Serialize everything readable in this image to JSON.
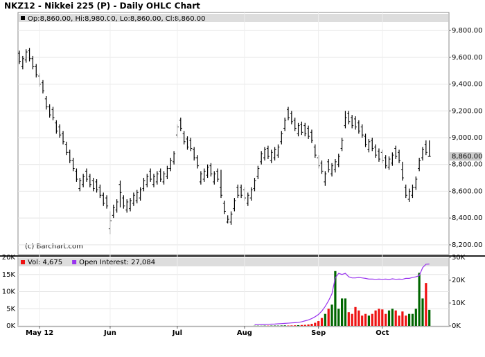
{
  "chart_data": [
    {
      "type": "ohlc",
      "title": "NKZ12 - Nikkei 225 (P) - Daily OHLC Chart",
      "legend": "Op:8,860.00, Hi:8,980.00, Lo:8,860.00, Cl:8,860.00",
      "credit": "(c) Barchart.com",
      "last": {
        "value": 8860,
        "label": "8,860.00"
      },
      "color": "#000000",
      "ylim": [
        8127,
        9935
      ],
      "yticks": [
        {
          "value": 8200,
          "label": "8,200.00"
        },
        {
          "value": 8400,
          "label": "8,400.00"
        },
        {
          "value": 8600,
          "label": "8,600.00"
        },
        {
          "value": 8800,
          "label": "8,800.00"
        },
        {
          "value": 9000,
          "label": "9,000.00"
        },
        {
          "value": 9200,
          "label": "9,200.00"
        },
        {
          "value": 9400,
          "label": "9,400.00"
        },
        {
          "value": 9600,
          "label": "9,600.00"
        },
        {
          "value": 9800,
          "label": "9,800.00"
        }
      ],
      "grid": true,
      "bars": [
        [
          9630,
          9650,
          9550,
          9570
        ],
        [
          9530,
          9610,
          9510,
          9590
        ],
        [
          9580,
          9660,
          9560,
          9640
        ],
        [
          9650,
          9670,
          9570,
          9590
        ],
        [
          9590,
          9610,
          9510,
          9530
        ],
        [
          9530,
          9550,
          9450,
          9470
        ],
        [
          9460,
          9480,
          9380,
          9400
        ],
        [
          9410,
          9430,
          9330,
          9350
        ],
        [
          9290,
          9310,
          9210,
          9230
        ],
        [
          9230,
          9250,
          9150,
          9170
        ],
        [
          9210,
          9230,
          9130,
          9150
        ],
        [
          9110,
          9130,
          9030,
          9050
        ],
        [
          9080,
          9100,
          9000,
          9020
        ],
        [
          9030,
          9050,
          8950,
          8970
        ],
        [
          8950,
          8970,
          8870,
          8890
        ],
        [
          8890,
          8910,
          8810,
          8830
        ],
        [
          8830,
          8850,
          8750,
          8770
        ],
        [
          8750,
          8770,
          8670,
          8690
        ],
        [
          8620,
          8700,
          8600,
          8680
        ],
        [
          8650,
          8730,
          8630,
          8710
        ],
        [
          8750,
          8770,
          8670,
          8690
        ],
        [
          8710,
          8730,
          8630,
          8650
        ],
        [
          8680,
          8700,
          8600,
          8620
        ],
        [
          8670,
          8690,
          8590,
          8610
        ],
        [
          8630,
          8650,
          8550,
          8570
        ],
        [
          8570,
          8590,
          8490,
          8510
        ],
        [
          8550,
          8570,
          8470,
          8490
        ],
        [
          8320,
          8450,
          8280,
          8380
        ],
        [
          8420,
          8500,
          8400,
          8480
        ],
        [
          8460,
          8540,
          8440,
          8520
        ],
        [
          8650,
          8680,
          8480,
          8590
        ],
        [
          8550,
          8570,
          8470,
          8490
        ],
        [
          8460,
          8540,
          8440,
          8520
        ],
        [
          8470,
          8550,
          8450,
          8530
        ],
        [
          8510,
          8590,
          8490,
          8570
        ],
        [
          8530,
          8610,
          8510,
          8590
        ],
        [
          8550,
          8630,
          8530,
          8610
        ],
        [
          8620,
          8700,
          8600,
          8680
        ],
        [
          8650,
          8730,
          8630,
          8710
        ],
        [
          8750,
          8770,
          8670,
          8690
        ],
        [
          8650,
          8730,
          8630,
          8710
        ],
        [
          8670,
          8750,
          8650,
          8730
        ],
        [
          8750,
          8770,
          8670,
          8690
        ],
        [
          8670,
          8750,
          8650,
          8730
        ],
        [
          8710,
          8790,
          8690,
          8770
        ],
        [
          8770,
          8850,
          8750,
          8830
        ],
        [
          8820,
          8900,
          8800,
          8880
        ],
        [
          9020,
          9100,
          9000,
          9080
        ],
        [
          9130,
          9150,
          9050,
          9070
        ],
        [
          9030,
          9050,
          8950,
          8970
        ],
        [
          8990,
          9010,
          8910,
          8930
        ],
        [
          8980,
          9000,
          8900,
          8920
        ],
        [
          8910,
          8930,
          8830,
          8850
        ],
        [
          8850,
          8870,
          8770,
          8790
        ],
        [
          8670,
          8750,
          8650,
          8730
        ],
        [
          8690,
          8770,
          8670,
          8750
        ],
        [
          8720,
          8800,
          8700,
          8780
        ],
        [
          8790,
          8810,
          8710,
          8730
        ],
        [
          8670,
          8750,
          8650,
          8730
        ],
        [
          8750,
          8770,
          8670,
          8690
        ],
        [
          8630,
          8760,
          8550,
          8570
        ],
        [
          8510,
          8530,
          8430,
          8450
        ],
        [
          8370,
          8420,
          8360,
          8390
        ],
        [
          8370,
          8450,
          8350,
          8430
        ],
        [
          8470,
          8550,
          8450,
          8530
        ],
        [
          8630,
          8650,
          8550,
          8570
        ],
        [
          8630,
          8650,
          8550,
          8570
        ],
        [
          8610,
          8630,
          8530,
          8550
        ],
        [
          8510,
          8590,
          8490,
          8570
        ],
        [
          8550,
          8630,
          8530,
          8610
        ],
        [
          8620,
          8700,
          8600,
          8680
        ],
        [
          8710,
          8790,
          8690,
          8770
        ],
        [
          8820,
          8900,
          8800,
          8880
        ],
        [
          8850,
          8930,
          8830,
          8910
        ],
        [
          8920,
          8940,
          8840,
          8860
        ],
        [
          8830,
          8910,
          8810,
          8890
        ],
        [
          8850,
          8930,
          8830,
          8910
        ],
        [
          8870,
          8950,
          8850,
          8930
        ],
        [
          8970,
          9050,
          8950,
          9030
        ],
        [
          9070,
          9150,
          9050,
          9130
        ],
        [
          9210,
          9230,
          9130,
          9150
        ],
        [
          9180,
          9200,
          9100,
          9120
        ],
        [
          9130,
          9150,
          9050,
          9070
        ],
        [
          9030,
          9110,
          9010,
          9090
        ],
        [
          9100,
          9120,
          9020,
          9040
        ],
        [
          9090,
          9110,
          9010,
          9030
        ],
        [
          9070,
          9090,
          8990,
          9010
        ],
        [
          9040,
          9060,
          8960,
          8980
        ],
        [
          8930,
          8950,
          8850,
          8870
        ],
        [
          8850,
          8870,
          8770,
          8790
        ],
        [
          8810,
          8830,
          8730,
          8750
        ],
        [
          8670,
          8750,
          8640,
          8730
        ],
        [
          8820,
          8840,
          8740,
          8760
        ],
        [
          8730,
          8810,
          8710,
          8790
        ],
        [
          8760,
          8840,
          8740,
          8820
        ],
        [
          8800,
          8880,
          8780,
          8860
        ],
        [
          8920,
          9000,
          8900,
          8980
        ],
        [
          9090,
          9200,
          9070,
          9150
        ],
        [
          9180,
          9200,
          9100,
          9120
        ],
        [
          9150,
          9170,
          9070,
          9090
        ],
        [
          9140,
          9160,
          9060,
          9080
        ],
        [
          9110,
          9130,
          9030,
          9050
        ],
        [
          9080,
          9100,
          9000,
          9020
        ],
        [
          9010,
          9030,
          8930,
          8950
        ],
        [
          8910,
          8990,
          8890,
          8970
        ],
        [
          8980,
          9000,
          8900,
          8920
        ],
        [
          8930,
          8950,
          8850,
          8870
        ],
        [
          8900,
          8920,
          8820,
          8840
        ],
        [
          8890,
          8910,
          8810,
          8830
        ],
        [
          8850,
          8870,
          8770,
          8790
        ],
        [
          8780,
          8860,
          8760,
          8840
        ],
        [
          8810,
          8890,
          8790,
          8870
        ],
        [
          8920,
          8940,
          8840,
          8860
        ],
        [
          8890,
          8910,
          8810,
          8830
        ],
        [
          8760,
          8820,
          8680,
          8700
        ],
        [
          8630,
          8650,
          8550,
          8570
        ],
        [
          8540,
          8620,
          8520,
          8600
        ],
        [
          8570,
          8650,
          8550,
          8630
        ],
        [
          8630,
          8710,
          8610,
          8690
        ],
        [
          8770,
          8850,
          8750,
          8830
        ],
        [
          8850,
          8930,
          8830,
          8910
        ],
        [
          8950,
          8980,
          8870,
          8890
        ],
        [
          8860,
          8980,
          8860,
          8860
        ]
      ]
    },
    {
      "type": "volume",
      "categories": [
        null,
        null,
        null,
        null,
        null,
        null,
        "May 12",
        null,
        null,
        null,
        null,
        null,
        null,
        null,
        null,
        null,
        null,
        null,
        null,
        null,
        null,
        null,
        null,
        null,
        null,
        null,
        null,
        "Jun",
        null,
        null,
        null,
        null,
        null,
        null,
        null,
        null,
        null,
        null,
        null,
        null,
        null,
        null,
        null,
        null,
        null,
        null,
        null,
        "Jul",
        null,
        null,
        null,
        null,
        null,
        null,
        null,
        null,
        null,
        null,
        null,
        null,
        null,
        null,
        null,
        null,
        null,
        null,
        null,
        "Aug",
        null,
        null,
        null,
        null,
        null,
        null,
        null,
        null,
        null,
        null,
        null,
        null,
        null,
        null,
        null,
        null,
        null,
        null,
        null,
        null,
        null,
        "Sep",
        null,
        null,
        null,
        null,
        null,
        null,
        null,
        null,
        null,
        null,
        null,
        null,
        null,
        null,
        null,
        null,
        null,
        null,
        "Oct",
        null,
        null,
        null,
        null,
        null,
        null,
        null,
        null,
        null,
        null,
        null,
        null,
        null,
        null
      ],
      "ylim": [
        0,
        20000
      ],
      "yticks": [
        {
          "value": 0,
          "label": "0K"
        },
        {
          "value": 5000,
          "label": "5K"
        },
        {
          "value": 10000,
          "label": "10K"
        },
        {
          "value": 15000,
          "label": "15K"
        },
        {
          "value": 20000,
          "label": "20K"
        }
      ],
      "y2lim": [
        0,
        30000
      ],
      "y2ticks": [
        {
          "value": 0,
          "label": "0K"
        },
        {
          "value": 10000,
          "label": "10K"
        },
        {
          "value": 20000,
          "label": "20K"
        },
        {
          "value": 30000,
          "label": "30K"
        }
      ],
      "up_color": "#006600",
      "down_color": "#ee1111",
      "series": [
        {
          "name": "Vol: 4,675",
          "color": "#ee1111",
          "values": [
            0,
            0,
            0,
            0,
            0,
            0,
            0,
            0,
            0,
            0,
            0,
            0,
            0,
            0,
            0,
            0,
            0,
            0,
            0,
            0,
            0,
            0,
            0,
            0,
            0,
            0,
            0,
            0,
            0,
            0,
            0,
            0,
            0,
            0,
            0,
            0,
            0,
            0,
            0,
            0,
            0,
            0,
            0,
            0,
            0,
            0,
            0,
            0,
            0,
            0,
            0,
            0,
            0,
            0,
            0,
            0,
            0,
            0,
            0,
            0,
            0,
            0,
            0,
            0,
            0,
            0,
            0,
            0,
            0,
            0,
            50,
            60,
            40,
            80,
            70,
            90,
            100,
            80,
            120,
            150,
            100,
            130,
            160,
            200,
            250,
            300,
            400,
            600,
            900,
            1400,
            2300,
            3500,
            5000,
            6200,
            16000,
            5000,
            8000,
            8000,
            4000,
            3500,
            5500,
            4500,
            3000,
            3500,
            3000,
            3500,
            4500,
            5000,
            4800,
            3500,
            4500,
            5000,
            4500,
            3000,
            4200,
            3000,
            3500,
            3500,
            5000,
            15500,
            8000,
            12500,
            4675
          ]
        },
        {
          "name": "Open Interest: 27,084",
          "color": "#9933ee",
          "axis": "y2",
          "values": [
            null,
            null,
            null,
            null,
            null,
            null,
            null,
            null,
            null,
            null,
            null,
            null,
            null,
            null,
            null,
            null,
            null,
            null,
            null,
            null,
            null,
            null,
            null,
            null,
            null,
            null,
            null,
            null,
            null,
            null,
            null,
            null,
            null,
            null,
            null,
            null,
            null,
            null,
            null,
            null,
            null,
            null,
            null,
            null,
            null,
            null,
            null,
            null,
            null,
            null,
            null,
            null,
            null,
            null,
            null,
            null,
            null,
            null,
            null,
            null,
            null,
            null,
            null,
            null,
            null,
            null,
            null,
            null,
            null,
            null,
            500,
            550,
            600,
            650,
            700,
            750,
            800,
            900,
            1000,
            1100,
            1200,
            1300,
            1400,
            1500,
            1800,
            2200,
            2600,
            3200,
            4000,
            5000,
            6500,
            8500,
            11000,
            14000,
            21000,
            23000,
            22500,
            23000,
            21500,
            21000,
            21000,
            21200,
            21000,
            20800,
            20500,
            20500,
            20400,
            20500,
            20400,
            20500,
            20300,
            20600,
            20400,
            20500,
            20400,
            20800,
            20800,
            21200,
            21500,
            22000,
            25500,
            27000,
            27084
          ]
        }
      ]
    }
  ]
}
